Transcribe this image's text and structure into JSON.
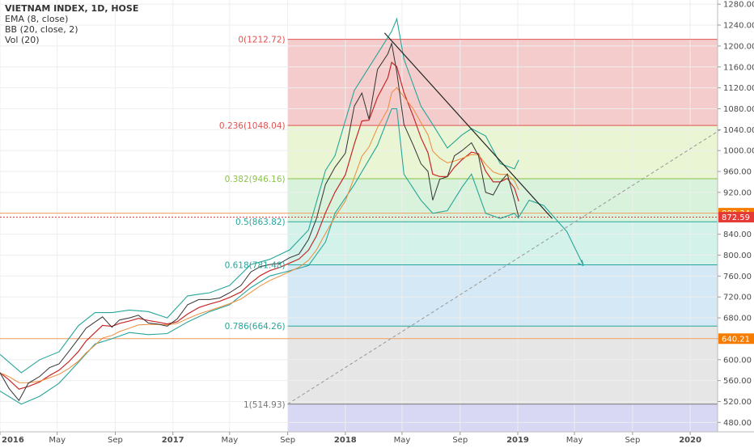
{
  "legend": {
    "title": "VIETNAM INDEX, 1D, HOSE",
    "studies": [
      "EMA (8, close)",
      "BB (20, close, 2)",
      "Vol (20)"
    ]
  },
  "chart_data": {
    "type": "line",
    "y_range": [
      462,
      1288
    ],
    "y_ticks": [
      480,
      520,
      560,
      600,
      640,
      680,
      720,
      760,
      800,
      840,
      880,
      920,
      960,
      1000,
      1040,
      1080,
      1120,
      1160,
      1200,
      1240,
      1280
    ],
    "y_tick_labels": [
      "480.00",
      "520.00",
      "560.00",
      "600.00",
      "640.00",
      "680.00",
      "720.00",
      "760.00",
      "800.00",
      "840.00",
      "880.00",
      "920.00",
      "960.00",
      "1000.00",
      "1040.00",
      "1080.00",
      "1120.00",
      "1160.00",
      "1200.00",
      "1240.00",
      "1280.00"
    ],
    "x_range": [
      "2016-01-01",
      "2020-02-28"
    ],
    "x_ticks": [
      {
        "date": "2016-01-01",
        "label": "2016",
        "year": true
      },
      {
        "date": "2016-05-01",
        "label": "May",
        "year": false
      },
      {
        "date": "2016-09-01",
        "label": "Sep",
        "year": false
      },
      {
        "date": "2017-01-01",
        "label": "2017",
        "year": true
      },
      {
        "date": "2017-05-01",
        "label": "May",
        "year": false
      },
      {
        "date": "2017-09-01",
        "label": "Sep",
        "year": false
      },
      {
        "date": "2018-01-01",
        "label": "2018",
        "year": true
      },
      {
        "date": "2018-05-01",
        "label": "May",
        "year": false
      },
      {
        "date": "2018-09-01",
        "label": "Sep",
        "year": false
      },
      {
        "date": "2019-01-01",
        "label": "2019",
        "year": true
      },
      {
        "date": "2019-05-01",
        "label": "May",
        "year": false
      },
      {
        "date": "2019-09-01",
        "label": "Sep",
        "year": false
      },
      {
        "date": "2020-01-01",
        "label": "2020",
        "year": true
      }
    ],
    "price_series": [
      [
        "2016-01-01",
        575
      ],
      [
        "2016-01-20",
        545
      ],
      [
        "2016-02-10",
        522
      ],
      [
        "2016-03-01",
        555
      ],
      [
        "2016-03-25",
        568
      ],
      [
        "2016-04-15",
        585
      ],
      [
        "2016-05-05",
        592
      ],
      [
        "2016-05-25",
        615
      ],
      [
        "2016-06-15",
        640
      ],
      [
        "2016-07-01",
        660
      ],
      [
        "2016-07-20",
        672
      ],
      [
        "2016-08-05",
        682
      ],
      [
        "2016-08-25",
        662
      ],
      [
        "2016-09-10",
        676
      ],
      [
        "2016-10-01",
        680
      ],
      [
        "2016-10-20",
        685
      ],
      [
        "2016-11-10",
        670
      ],
      [
        "2016-11-30",
        668
      ],
      [
        "2016-12-20",
        664
      ],
      [
        "2017-01-10",
        678
      ],
      [
        "2017-02-01",
        705
      ],
      [
        "2017-02-25",
        715
      ],
      [
        "2017-03-20",
        715
      ],
      [
        "2017-04-10",
        718
      ],
      [
        "2017-05-01",
        728
      ],
      [
        "2017-05-25",
        742
      ],
      [
        "2017-06-15",
        768
      ],
      [
        "2017-07-05",
        778
      ],
      [
        "2017-07-25",
        782
      ],
      [
        "2017-08-15",
        784
      ],
      [
        "2017-09-05",
        795
      ],
      [
        "2017-09-25",
        802
      ],
      [
        "2017-10-15",
        830
      ],
      [
        "2017-11-01",
        870
      ],
      [
        "2017-11-20",
        935
      ],
      [
        "2017-12-10",
        968
      ],
      [
        "2018-01-01",
        995
      ],
      [
        "2018-01-20",
        1085
      ],
      [
        "2018-02-05",
        1110
      ],
      [
        "2018-02-20",
        1060
      ],
      [
        "2018-03-10",
        1155
      ],
      [
        "2018-04-01",
        1185
      ],
      [
        "2018-04-09",
        1205
      ],
      [
        "2018-04-20",
        1150
      ],
      [
        "2018-05-05",
        1050
      ],
      [
        "2018-05-25",
        1010
      ],
      [
        "2018-06-10",
        975
      ],
      [
        "2018-06-25",
        960
      ],
      [
        "2018-07-05",
        905
      ],
      [
        "2018-07-20",
        945
      ],
      [
        "2018-08-05",
        950
      ],
      [
        "2018-08-20",
        990
      ],
      [
        "2018-09-05",
        1000
      ],
      [
        "2018-09-25",
        1015
      ],
      [
        "2018-10-10",
        990
      ],
      [
        "2018-10-25",
        920
      ],
      [
        "2018-11-10",
        915
      ],
      [
        "2018-11-25",
        940
      ],
      [
        "2018-12-10",
        955
      ],
      [
        "2018-12-25",
        905
      ],
      [
        "2019-01-03",
        872.59
      ]
    ],
    "upper_band": [
      [
        "2016-01-01",
        610
      ],
      [
        "2016-02-15",
        575
      ],
      [
        "2016-03-25",
        600
      ],
      [
        "2016-05-05",
        615
      ],
      [
        "2016-06-15",
        665
      ],
      [
        "2016-07-20",
        690
      ],
      [
        "2016-08-25",
        690
      ],
      [
        "2016-10-01",
        695
      ],
      [
        "2016-11-10",
        692
      ],
      [
        "2016-12-20",
        680
      ],
      [
        "2017-02-01",
        722
      ],
      [
        "2017-03-20",
        728
      ],
      [
        "2017-05-01",
        742
      ],
      [
        "2017-06-15",
        782
      ],
      [
        "2017-07-25",
        792
      ],
      [
        "2017-09-05",
        810
      ],
      [
        "2017-10-15",
        848
      ],
      [
        "2017-11-20",
        962
      ],
      [
        "2017-12-10",
        990
      ],
      [
        "2018-01-20",
        1115
      ],
      [
        "2018-03-10",
        1185
      ],
      [
        "2018-04-09",
        1228
      ],
      [
        "2018-04-20",
        1252
      ],
      [
        "2018-05-05",
        1175
      ],
      [
        "2018-06-10",
        1085
      ],
      [
        "2018-07-05",
        1050
      ],
      [
        "2018-08-05",
        1005
      ],
      [
        "2018-09-05",
        1030
      ],
      [
        "2018-09-25",
        1042
      ],
      [
        "2018-10-25",
        1028
      ],
      [
        "2018-11-25",
        975
      ],
      [
        "2018-12-25",
        965
      ],
      [
        "2019-01-03",
        982
      ]
    ],
    "lower_band": [
      [
        "2016-01-01",
        540
      ],
      [
        "2016-02-15",
        515
      ],
      [
        "2016-03-25",
        530
      ],
      [
        "2016-05-05",
        555
      ],
      [
        "2016-06-15",
        595
      ],
      [
        "2016-07-20",
        630
      ],
      [
        "2016-08-25",
        640
      ],
      [
        "2016-10-01",
        652
      ],
      [
        "2016-11-10",
        648
      ],
      [
        "2016-12-20",
        650
      ],
      [
        "2017-02-01",
        672
      ],
      [
        "2017-03-20",
        692
      ],
      [
        "2017-05-01",
        705
      ],
      [
        "2017-06-15",
        738
      ],
      [
        "2017-07-25",
        760
      ],
      [
        "2017-09-05",
        770
      ],
      [
        "2017-10-15",
        780
      ],
      [
        "2017-11-20",
        825
      ],
      [
        "2017-12-10",
        880
      ],
      [
        "2018-01-20",
        935
      ],
      [
        "2018-03-10",
        1010
      ],
      [
        "2018-04-09",
        1080
      ],
      [
        "2018-04-20",
        1080
      ],
      [
        "2018-05-05",
        955
      ],
      [
        "2018-06-10",
        905
      ],
      [
        "2018-07-05",
        880
      ],
      [
        "2018-08-05",
        885
      ],
      [
        "2018-09-05",
        930
      ],
      [
        "2018-09-25",
        955
      ],
      [
        "2018-10-25",
        880
      ],
      [
        "2018-11-25",
        870
      ],
      [
        "2018-12-25",
        880
      ],
      [
        "2019-01-03",
        870
      ]
    ],
    "projection_path": [
      [
        "2019-01-03",
        872.59
      ],
      [
        "2019-01-25",
        905
      ],
      [
        "2019-02-25",
        895
      ],
      [
        "2019-04-15",
        845
      ],
      [
        "2019-05-20",
        780
      ]
    ],
    "projection_color": "#26a69a",
    "trendline_down": [
      [
        "2018-03-25",
        1225
      ],
      [
        "2019-03-15",
        870
      ]
    ],
    "trendline_up": [
      [
        "2017-09-01",
        515
      ],
      [
        "2020-03-05",
        1040
      ]
    ],
    "fib_start_date": "2017-09-01",
    "fib_levels": [
      {
        "label": "0(1212.72)",
        "value": 1212.72,
        "color": "#e05252"
      },
      {
        "label": "0.236(1048.04)",
        "value": 1048.04,
        "color": "#e05252"
      },
      {
        "label": "0.382(946.16)",
        "value": 946.16,
        "color": "#8bc34a"
      },
      {
        "label": "0.5(863.82)",
        "value": 863.82,
        "color": "#26a69a"
      },
      {
        "label": "0.618(781.48)",
        "value": 781.48,
        "color": "#26a69a"
      },
      {
        "label": "0.786(664.26)",
        "value": 664.26,
        "color": "#26a69a"
      },
      {
        "label": "1(514.93)",
        "value": 514.93,
        "color": "#777777"
      }
    ],
    "fib_zones": [
      {
        "top": 1212.72,
        "bottom": 1048.04,
        "color": "#f4cccc"
      },
      {
        "top": 1048.04,
        "bottom": 946.16,
        "color": "#eaf5d3"
      },
      {
        "top": 946.16,
        "bottom": 863.82,
        "color": "#d9f2dc"
      },
      {
        "top": 863.82,
        "bottom": 781.48,
        "color": "#d3f2ea"
      },
      {
        "top": 781.48,
        "bottom": 664.26,
        "color": "#d4e9f5"
      },
      {
        "top": 664.26,
        "bottom": 514.93,
        "color": "#e6e6e6"
      },
      {
        "top": 514.93,
        "bottom": 462,
        "color": "#d8d8f5"
      }
    ],
    "horizontal_lines": [
      {
        "value": 880.24,
        "color": "#f0a060"
      },
      {
        "value": 640.21,
        "color": "#f0a060"
      },
      {
        "value": 872.59,
        "color": "#e53935",
        "dotted": true
      }
    ],
    "price_badges": [
      {
        "value": 880.24,
        "label": "880.24",
        "color": "#f57c00"
      },
      {
        "value": 872.59,
        "label": "872.59",
        "color": "#e53935"
      },
      {
        "value": 640.21,
        "label": "640.21",
        "color": "#f57c00"
      }
    ]
  }
}
